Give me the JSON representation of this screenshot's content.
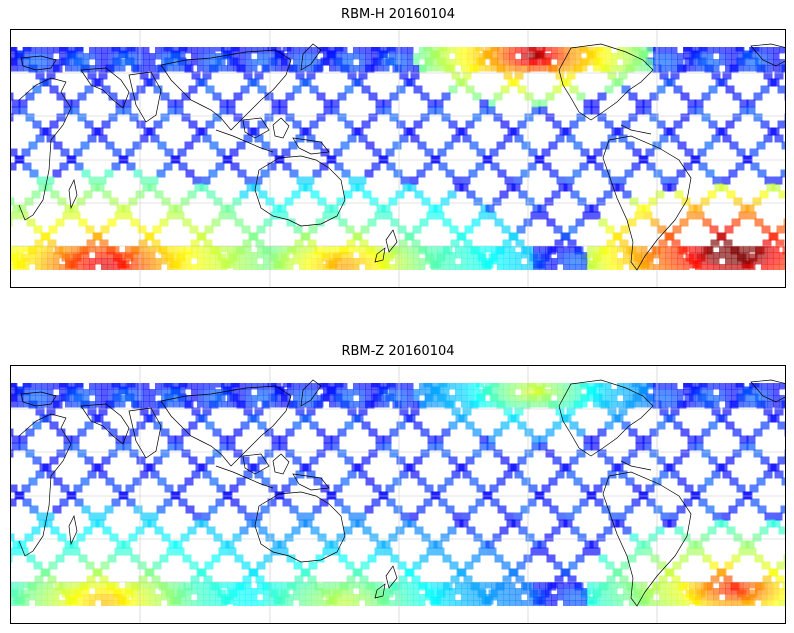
{
  "panels": [
    {
      "title": "RBM-H 20160104",
      "colormap": "jet",
      "swath_opacity": 0.65,
      "hotspots": [
        {
          "region": "south-atlantic",
          "value": 1.0
        },
        {
          "region": "southern-ocean-west",
          "value": 0.78
        },
        {
          "region": "north-pacific",
          "value": 0.85
        },
        {
          "region": "southern-ocean-east",
          "value": 0.58
        }
      ]
    },
    {
      "title": "RBM-Z 20160104",
      "colormap": "jet",
      "swath_opacity": 0.65,
      "hotspots": [
        {
          "region": "south-atlantic",
          "value": 0.72
        },
        {
          "region": "southern-ocean-west",
          "value": 0.55
        },
        {
          "region": "north-pacific",
          "value": 0.45
        },
        {
          "region": "southern-ocean-east",
          "value": 0.42
        }
      ]
    }
  ],
  "colors": {
    "swath_base": "#6666ee",
    "frame": "#000000",
    "coastline": "#000000",
    "gridline": "#c8c8c8"
  }
}
